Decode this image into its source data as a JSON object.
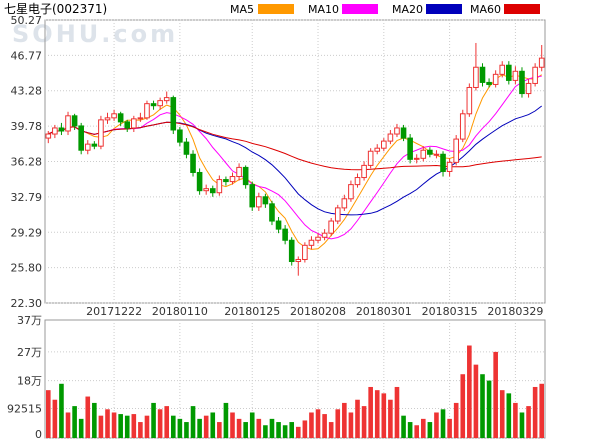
{
  "chart_data": {
    "type": "candlestick",
    "title": "七星电子(002371)",
    "watermark": "SOHU.com",
    "price_axis": {
      "ticks": [
        50.27,
        46.77,
        43.28,
        39.78,
        36.28,
        32.79,
        29.29,
        25.8,
        22.3
      ],
      "tick_labels": [
        "50.27",
        "46.77",
        "43.28",
        "39.78",
        "36.28",
        "32.79",
        "29.29",
        "25.80",
        "22.30"
      ],
      "ylim": [
        22.3,
        50.27
      ]
    },
    "volume_axis": {
      "ticks": [
        370000,
        270000,
        180000,
        92515,
        0
      ],
      "tick_labels": [
        "37万",
        "27万",
        "18万",
        "92515",
        "0"
      ],
      "ylim": [
        0,
        370000
      ]
    },
    "date_ticks": [
      {
        "i": 10,
        "label": "20171222"
      },
      {
        "i": 20,
        "label": "20180110"
      },
      {
        "i": 31,
        "label": "20180125"
      },
      {
        "i": 41,
        "label": "20180208"
      },
      {
        "i": 51,
        "label": "20180301"
      },
      {
        "i": 61,
        "label": "20180315"
      },
      {
        "i": 71,
        "label": "20180329"
      }
    ],
    "legend": [
      {
        "name": "MA5",
        "color": "#ff9900"
      },
      {
        "name": "MA10",
        "color": "#ff00ff"
      },
      {
        "name": "MA20",
        "color": "#0000bb"
      },
      {
        "name": "MA60",
        "color": "#dd0000"
      }
    ],
    "colors": {
      "up": "#ee3333",
      "down": "#009900",
      "grid": "#cccccc",
      "axis_text": "#333333"
    },
    "candles": {
      "open": [
        38.6,
        39.0,
        39.6,
        39.3,
        40.8,
        39.8,
        37.4,
        38.0,
        37.8,
        40.4,
        40.6,
        41.0,
        40.2,
        39.6,
        40.5,
        40.6,
        42.0,
        41.8,
        42.3,
        42.6,
        39.4,
        38.2,
        37.0,
        35.2,
        33.4,
        33.6,
        33.2,
        34.5,
        34.3,
        34.8,
        35.7,
        34.0,
        31.8,
        32.8,
        32.1,
        30.4,
        29.6,
        28.5,
        26.4,
        26.6,
        28.0,
        28.5,
        28.8,
        29.2,
        30.4,
        31.7,
        32.6,
        34.0,
        34.7,
        35.9,
        37.3,
        37.6,
        38.3,
        39.0,
        39.6,
        38.6,
        36.5,
        36.6,
        37.4,
        37.0,
        37.0,
        35.3,
        36.2,
        38.5,
        41.0,
        43.6,
        45.6,
        44.1,
        43.9,
        44.9,
        45.8,
        44.3,
        45.2,
        43.0,
        44.0,
        45.6
      ],
      "close": [
        39.0,
        39.6,
        39.3,
        40.8,
        39.8,
        37.4,
        38.0,
        37.8,
        40.4,
        40.6,
        41.0,
        40.2,
        39.6,
        40.5,
        40.6,
        42.0,
        41.8,
        42.3,
        42.6,
        39.4,
        38.2,
        37.0,
        35.2,
        33.4,
        33.6,
        33.2,
        34.5,
        34.3,
        34.8,
        35.7,
        34.0,
        31.8,
        32.8,
        32.1,
        30.4,
        29.6,
        28.5,
        26.4,
        26.6,
        28.0,
        28.5,
        28.8,
        29.2,
        30.4,
        31.7,
        32.6,
        34.0,
        34.7,
        35.9,
        37.3,
        37.6,
        38.3,
        39.0,
        39.6,
        38.6,
        36.5,
        36.6,
        37.4,
        37.0,
        37.0,
        35.3,
        36.2,
        38.5,
        41.0,
        43.6,
        45.6,
        44.1,
        43.9,
        44.9,
        45.8,
        44.3,
        45.2,
        43.0,
        44.0,
        45.6,
        46.5
      ],
      "high": [
        39.3,
        39.9,
        40.1,
        41.2,
        41.0,
        40.1,
        38.4,
        38.3,
        40.8,
        41.1,
        41.4,
        41.2,
        40.4,
        40.8,
        41.1,
        42.3,
        42.3,
        42.6,
        43.2,
        42.8,
        39.7,
        38.6,
        37.4,
        35.6,
        34.0,
        33.9,
        34.9,
        34.8,
        35.2,
        36.1,
        35.9,
        34.3,
        33.2,
        33.1,
        32.4,
        30.8,
        30.0,
        28.8,
        26.9,
        28.3,
        28.9,
        29.2,
        29.6,
        30.7,
        32.0,
        33.0,
        34.4,
        35.1,
        36.3,
        37.6,
        38.0,
        38.6,
        39.4,
        40.0,
        39.9,
        39.0,
        37.0,
        37.8,
        37.7,
        37.4,
        37.3,
        36.6,
        38.9,
        41.4,
        44.0,
        48.0,
        46.0,
        44.5,
        45.3,
        46.2,
        46.2,
        45.7,
        45.6,
        44.4,
        46.0,
        47.8
      ],
      "low": [
        38.1,
        38.6,
        38.9,
        38.9,
        39.4,
        37.0,
        37.0,
        37.5,
        37.5,
        40.0,
        40.3,
        39.8,
        39.2,
        39.2,
        40.2,
        40.4,
        41.4,
        41.4,
        42.0,
        39.0,
        37.8,
        36.6,
        34.8,
        33.0,
        33.0,
        32.8,
        32.9,
        33.9,
        34.0,
        34.4,
        33.6,
        31.4,
        31.4,
        31.7,
        30.0,
        29.2,
        28.1,
        26.0,
        25.0,
        26.3,
        27.6,
        28.2,
        28.5,
        28.9,
        30.1,
        31.4,
        32.3,
        33.7,
        34.4,
        35.6,
        37.0,
        37.3,
        38.0,
        38.7,
        38.3,
        36.1,
        36.1,
        36.3,
        36.7,
        36.6,
        34.8,
        34.8,
        35.9,
        38.2,
        40.7,
        43.3,
        43.7,
        43.6,
        43.6,
        44.6,
        43.9,
        43.9,
        42.6,
        42.6,
        43.7,
        45.2
      ]
    },
    "volume": [
      150000,
      120000,
      170000,
      80000,
      100000,
      60000,
      130000,
      110000,
      70000,
      90000,
      80000,
      75000,
      70000,
      75000,
      50000,
      70000,
      110000,
      90000,
      100000,
      70000,
      60000,
      50000,
      100000,
      60000,
      70000,
      80000,
      50000,
      110000,
      80000,
      60000,
      50000,
      80000,
      60000,
      40000,
      60000,
      50000,
      40000,
      50000,
      35000,
      55000,
      80000,
      90000,
      75000,
      50000,
      90000,
      110000,
      80000,
      120000,
      100000,
      160000,
      150000,
      140000,
      120000,
      160000,
      70000,
      50000,
      40000,
      60000,
      50000,
      80000,
      90000,
      60000,
      110000,
      200000,
      290000,
      230000,
      200000,
      180000,
      270000,
      150000,
      140000,
      110000,
      80000,
      100000,
      160000,
      170000
    ]
  }
}
